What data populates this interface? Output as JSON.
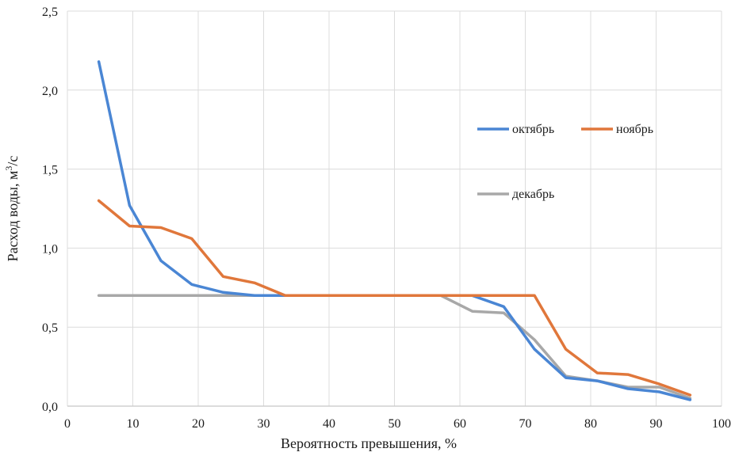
{
  "chart_data": {
    "type": "line",
    "title": "",
    "xlabel": "Вероятность превышения, %",
    "ylabel": "Расход воды, м³/с",
    "ylabel_main": "Расход воды, м",
    "ylabel_sup": "3",
    "ylabel_tail": "/с",
    "xlim": [
      0,
      100
    ],
    "ylim": [
      0,
      2.5
    ],
    "xticks": [
      0,
      10,
      20,
      30,
      40,
      50,
      60,
      70,
      80,
      90,
      100
    ],
    "xtick_labels": [
      "0",
      "10",
      "20",
      "30",
      "40",
      "50",
      "60",
      "70",
      "80",
      "90",
      "100"
    ],
    "yticks": [
      0,
      0.5,
      1.0,
      1.5,
      2.0,
      2.5
    ],
    "ytick_labels": [
      "0,0",
      "0,5",
      "1,0",
      "1,5",
      "2,0",
      "2,5"
    ],
    "grid": true,
    "legend_position": "upper-right-inside",
    "x": [
      4.8,
      9.5,
      14.3,
      19.0,
      23.8,
      28.6,
      33.3,
      38.1,
      42.9,
      47.6,
      52.4,
      57.1,
      61.9,
      66.7,
      71.4,
      76.2,
      81.0,
      85.7,
      90.5,
      95.2
    ],
    "series": [
      {
        "name": "октябрь",
        "color": "#4a86d4",
        "values": [
          2.18,
          1.27,
          0.92,
          0.77,
          0.72,
          0.7,
          0.7,
          0.7,
          0.7,
          0.7,
          0.7,
          0.7,
          0.7,
          0.63,
          0.36,
          0.18,
          0.16,
          0.11,
          0.09,
          0.04
        ]
      },
      {
        "name": "ноябрь",
        "color": "#e0773b",
        "values": [
          1.3,
          1.14,
          1.13,
          1.06,
          0.82,
          0.78,
          0.7,
          0.7,
          0.7,
          0.7,
          0.7,
          0.7,
          0.7,
          0.7,
          0.7,
          0.36,
          0.21,
          0.2,
          0.14,
          0.07
        ]
      },
      {
        "name": "декабрь",
        "color": "#a8a8a8",
        "values": [
          0.7,
          0.7,
          0.7,
          0.7,
          0.7,
          0.7,
          0.7,
          0.7,
          0.7,
          0.7,
          0.7,
          0.7,
          0.6,
          0.59,
          0.42,
          0.19,
          0.16,
          0.12,
          0.12,
          0.05
        ]
      }
    ],
    "legend": [
      "октябрь",
      "ноябрь",
      "декабрь"
    ]
  }
}
